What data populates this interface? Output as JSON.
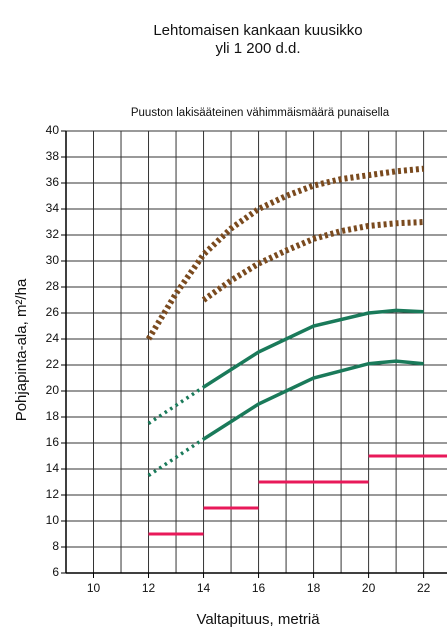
{
  "chart_data": {
    "type": "line",
    "title": [
      "Lehtomaisen kankaan kuusikko",
      "yli 1 200 d.d."
    ],
    "subtitle": "Puuston lakisääteinen vähimmäismäärä punaisella",
    "x_label": "Valtapituus, metriä",
    "y_label": "Pohjapinta-ala, m²/ha",
    "xlim": [
      9,
      22.85
    ],
    "ylim": [
      6,
      40
    ],
    "xticks": [
      10,
      12,
      14,
      16,
      18,
      20,
      22
    ],
    "x_minor_grid": [
      9,
      11,
      13,
      15,
      17,
      19,
      21
    ],
    "yticks": [
      6,
      8,
      10,
      12,
      14,
      16,
      18,
      20,
      22,
      24,
      26,
      28,
      30,
      32,
      34,
      36,
      38,
      40
    ],
    "grid": true,
    "series": [
      {
        "color": "#7a4a1e",
        "style": "dotted-thick",
        "x": [
          12,
          13,
          14,
          15,
          16,
          17,
          18,
          19,
          20,
          21,
          22
        ],
        "values": [
          24,
          27.5,
          30.5,
          32.5,
          34,
          35,
          35.8,
          36.3,
          36.6,
          36.9,
          37.1
        ]
      },
      {
        "color": "#7a4a1e",
        "style": "dotted-thick",
        "x": [
          14,
          15,
          16,
          17,
          18,
          19,
          20,
          21,
          22
        ],
        "values": [
          27,
          28.5,
          29.8,
          30.8,
          31.7,
          32.3,
          32.7,
          32.9,
          33
        ]
      },
      {
        "color": "#1a7a5a",
        "style": "dotted",
        "x": [
          12,
          13,
          14
        ],
        "values": [
          17.5,
          18.9,
          20.3
        ]
      },
      {
        "color": "#1a7a5a",
        "style": "solid",
        "x": [
          14,
          16,
          18,
          20,
          21,
          22
        ],
        "values": [
          20.3,
          23,
          25,
          26,
          26.2,
          26.1
        ]
      },
      {
        "color": "#1a7a5a",
        "style": "dotted",
        "x": [
          12,
          13,
          14
        ],
        "values": [
          13.5,
          14.9,
          16.3
        ]
      },
      {
        "color": "#1a7a5a",
        "style": "solid",
        "x": [
          14,
          16,
          18,
          20,
          21,
          22
        ],
        "values": [
          16.3,
          19,
          21,
          22.1,
          22.3,
          22.1
        ]
      }
    ],
    "steps": {
      "color": "#e8195a",
      "x_start": [
        12,
        14,
        16,
        20
      ],
      "x_end": [
        14,
        16,
        20,
        23
      ],
      "values": [
        9,
        11,
        13,
        15
      ]
    }
  }
}
